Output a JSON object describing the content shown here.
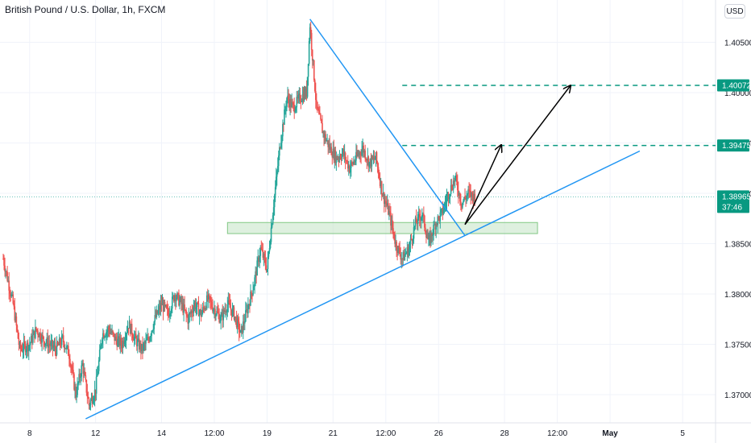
{
  "header": {
    "title": "British Pound / U.S. Dollar, 1h, FXCM",
    "currency_button": "USD"
  },
  "colors": {
    "up": "#26a69a",
    "down": "#ef5350",
    "trendline": "#2196f3",
    "level_line": "#089981",
    "zone_fill": "#c8e6c9",
    "zone_border": "#81c784",
    "arrow": "#000000",
    "current_price_bg": "#089981"
  },
  "chart_data": {
    "type": "candlestick",
    "symbol": "British Pound / U.S. Dollar",
    "interval": "1h",
    "source": "FXCM",
    "y_axis": {
      "ticks": [
        1.37,
        1.375,
        1.38,
        1.385,
        1.39,
        1.395,
        1.4,
        1.405
      ],
      "tick_labels": [
        "1.37000",
        "1.37500",
        "1.38000",
        "1.38500",
        "1.39000",
        "1.39500",
        "1.40000",
        "1.40500"
      ],
      "range": [
        1.3672,
        1.4092
      ]
    },
    "x_axis": {
      "tick_labels": [
        "8",
        "12",
        "14",
        "12:00",
        "19",
        "21",
        "12:00",
        "26",
        "28",
        "12:00",
        "May",
        "5"
      ],
      "tick_bars": [
        8,
        28,
        48,
        64,
        80,
        100,
        116,
        132,
        152,
        168,
        184,
        206
      ],
      "range_bars": [
        0,
        215
      ]
    },
    "price_labels": [
      {
        "value": 1.40072,
        "text": "1.40072"
      },
      {
        "value": 1.39475,
        "text": "1.39475"
      },
      {
        "value": 1.38965,
        "text": "1.38965",
        "countdown": "37:46"
      }
    ],
    "current_price": 1.38965,
    "horizontal_levels": [
      {
        "value": 1.40072,
        "from_bar": 121,
        "to_bar": 215
      },
      {
        "value": 1.39475,
        "from_bar": 121,
        "to_bar": 215
      }
    ],
    "support_zone": {
      "from_bar": 68,
      "to_bar": 162,
      "top": 1.3871,
      "bottom": 1.386
    },
    "trendlines": [
      {
        "name": "ascending support",
        "from": {
          "bar": 25,
          "price": 1.3676
        },
        "to": {
          "bar": 193,
          "price": 1.3942
        }
      },
      {
        "name": "descending resistance",
        "from": {
          "bar": 93,
          "price": 1.4073
        },
        "to": {
          "bar": 140,
          "price": 1.3858
        }
      }
    ],
    "arrows": [
      {
        "from": {
          "bar": 140,
          "price": 1.3869
        },
        "to": {
          "bar": 151,
          "price": 1.3948
        }
      },
      {
        "from": {
          "bar": 140,
          "price": 1.3869
        },
        "to": {
          "bar": 172,
          "price": 1.4007
        }
      }
    ],
    "candles_close_path": [
      [
        0,
        1.3835
      ],
      [
        3,
        1.379
      ],
      [
        5,
        1.3745
      ],
      [
        8,
        1.375
      ],
      [
        10,
        1.3765
      ],
      [
        12,
        1.3755
      ],
      [
        16,
        1.3745
      ],
      [
        18,
        1.3755
      ],
      [
        20,
        1.374
      ],
      [
        22,
        1.37
      ],
      [
        24,
        1.373
      ],
      [
        26,
        1.369
      ],
      [
        28,
        1.3705
      ],
      [
        30,
        1.376
      ],
      [
        32,
        1.3765
      ],
      [
        34,
        1.3755
      ],
      [
        36,
        1.375
      ],
      [
        38,
        1.377
      ],
      [
        40,
        1.3755
      ],
      [
        42,
        1.3745
      ],
      [
        44,
        1.3755
      ],
      [
        46,
        1.3775
      ],
      [
        48,
        1.379
      ],
      [
        50,
        1.378
      ],
      [
        52,
        1.38
      ],
      [
        54,
        1.379
      ],
      [
        56,
        1.3775
      ],
      [
        58,
        1.379
      ],
      [
        60,
        1.378
      ],
      [
        62,
        1.3795
      ],
      [
        64,
        1.3785
      ],
      [
        66,
        1.3775
      ],
      [
        68,
        1.379
      ],
      [
        70,
        1.378
      ],
      [
        72,
        1.376
      ],
      [
        74,
        1.3785
      ],
      [
        76,
        1.381
      ],
      [
        78,
        1.3845
      ],
      [
        80,
        1.3825
      ],
      [
        82,
        1.389
      ],
      [
        84,
        1.395
      ],
      [
        86,
        1.3995
      ],
      [
        88,
        1.3985
      ],
      [
        90,
        1.3995
      ],
      [
        92,
        1.4
      ],
      [
        93,
        1.4068
      ],
      [
        95,
        1.3985
      ],
      [
        97,
        1.396
      ],
      [
        99,
        1.3945
      ],
      [
        101,
        1.3935
      ],
      [
        103,
        1.394
      ],
      [
        105,
        1.3925
      ],
      [
        107,
        1.3935
      ],
      [
        109,
        1.3945
      ],
      [
        111,
        1.393
      ],
      [
        113,
        1.3935
      ],
      [
        115,
        1.39
      ],
      [
        117,
        1.388
      ],
      [
        119,
        1.385
      ],
      [
        121,
        1.3835
      ],
      [
        123,
        1.3845
      ],
      [
        125,
        1.387
      ],
      [
        127,
        1.388
      ],
      [
        129,
        1.385
      ],
      [
        131,
        1.387
      ],
      [
        133,
        1.388
      ],
      [
        135,
        1.39
      ],
      [
        137,
        1.3915
      ],
      [
        139,
        1.389
      ],
      [
        141,
        1.39
      ],
      [
        143,
        1.3896
      ]
    ]
  }
}
